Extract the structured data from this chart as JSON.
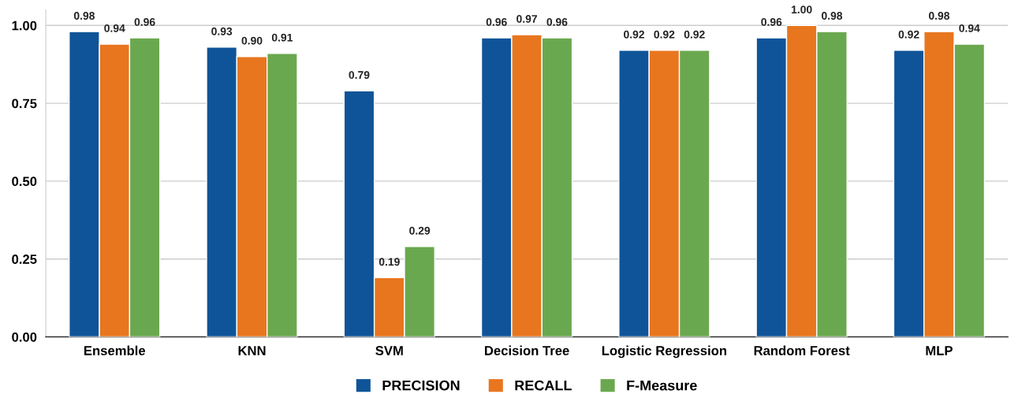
{
  "chart_data": {
    "type": "bar",
    "categories": [
      "Ensemble",
      "KNN",
      "SVM",
      "Decision Tree",
      "Logistic Regression",
      "Random Forest",
      "MLP"
    ],
    "series": [
      {
        "name": "PRECISION",
        "color": "#0f5498",
        "values": [
          0.98,
          0.93,
          0.79,
          0.96,
          0.92,
          0.96,
          0.92
        ],
        "value_labels": [
          "0.98",
          "0.93",
          "0.79",
          "0.96",
          "0.92",
          "0.96",
          "0.92"
        ]
      },
      {
        "name": "RECALL",
        "color": "#e8761f",
        "values": [
          0.94,
          0.9,
          0.19,
          0.97,
          0.92,
          1,
          0.98
        ],
        "value_labels": [
          "0.94",
          "0.90",
          "0.19",
          "0.97",
          "0.92",
          "1.00",
          "0.98"
        ]
      },
      {
        "name": "F-Measure",
        "color": "#6aa84f",
        "values": [
          0.96,
          0.91,
          0.29,
          0.96,
          0.92,
          0.98,
          0.94
        ],
        "value_labels": [
          "0.96",
          "0.91",
          "0.29",
          "0.96",
          "0.92",
          "0.98",
          "0.94"
        ]
      }
    ],
    "ylim": [
      0,
      1.05
    ],
    "yticks": [
      {
        "value": 0,
        "label": "0.00"
      },
      {
        "value": 0.25,
        "label": "0.25"
      },
      {
        "value": 0.5,
        "label": "0.50"
      },
      {
        "value": 0.75,
        "label": "0.75"
      },
      {
        "value": 1,
        "label": "1.00"
      }
    ],
    "grid": "y",
    "legend": "bottom"
  }
}
